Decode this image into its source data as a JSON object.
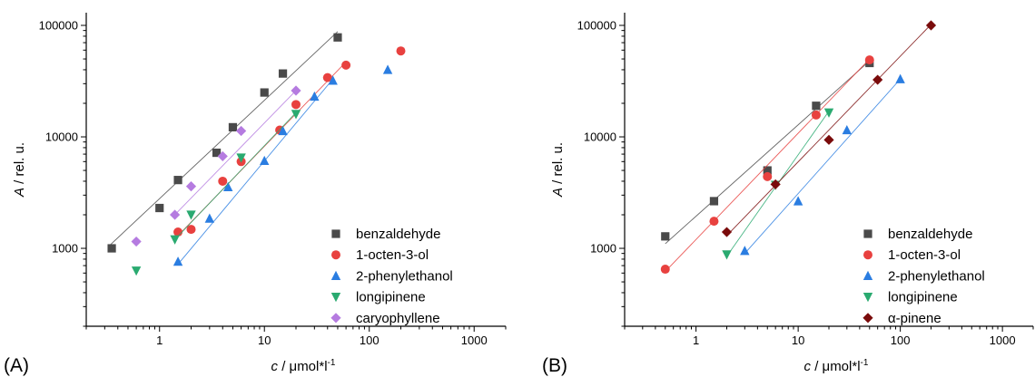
{
  "panels": [
    {
      "label": "(A)",
      "chart_data": {
        "type": "scatter",
        "xscale": "log",
        "yscale": "log",
        "xlim": [
          0.2,
          2000
        ],
        "ylim": [
          200,
          130000
        ],
        "xlabel_var": "c",
        "xlabel_unit": " / μmol*l",
        "xlabel_sup": "-1",
        "ylabel_var": "A",
        "ylabel_unit": " / rel. u.",
        "xticks": [
          1,
          10,
          100,
          1000
        ],
        "xtick_labels": [
          "1",
          "10",
          "100",
          "1000"
        ],
        "yticks": [
          1000,
          10000,
          100000
        ],
        "ytick_labels": [
          "1000",
          "10000",
          "100000"
        ],
        "legend_position": "bottom-right",
        "series": [
          {
            "name": "benzaldehyde",
            "marker": "square",
            "color": "#4a4a4a",
            "x": [
              0.35,
              1,
              1.5,
              3.5,
              5,
              10,
              15,
              50
            ],
            "y": [
              1000,
              2300,
              4100,
              7200,
              12200,
              25000,
              37000,
              78000
            ],
            "fit": [
              [
                0.33,
                1050
              ],
              [
                50,
                88000
              ]
            ]
          },
          {
            "name": "1-octen-3-ol",
            "marker": "circle",
            "color": "#e8413f",
            "x": [
              1.5,
              2,
              4,
              6,
              14,
              20,
              40,
              60,
              200
            ],
            "y": [
              1400,
              1480,
              4000,
              6000,
              11500,
              19500,
              34000,
              44000,
              59000
            ],
            "fit": [
              [
                1.5,
                1300
              ],
              [
                60,
                47000
              ]
            ]
          },
          {
            "name": "2-phenylethanol",
            "marker": "triangle-up",
            "color": "#2a7de1",
            "x": [
              1.5,
              3,
              4.5,
              10,
              15,
              30,
              45,
              150
            ],
            "y": [
              760,
              1850,
              3550,
              6100,
              11300,
              23000,
              32000,
              40000
            ],
            "fit": [
              [
                1.5,
                720
              ],
              [
                45,
                33000
              ]
            ]
          },
          {
            "name": "longipinene",
            "marker": "triangle-down",
            "color": "#2aaa70",
            "x": [
              0.6,
              1.4,
              2,
              6,
              20
            ],
            "y": [
              630,
              1200,
              2000,
              6500,
              16000
            ],
            "fit": [
              [
                1.4,
                1200
              ],
              [
                20,
                16500
              ]
            ]
          },
          {
            "name": "caryophyllene",
            "marker": "diamond",
            "color": "#b57be0",
            "x": [
              0.6,
              1.4,
              2,
              4,
              6,
              20
            ],
            "y": [
              1150,
              2000,
              3600,
              6700,
              11300,
              26000
            ],
            "fit": [
              [
                1.4,
                2000
              ],
              [
                20,
                26000
              ]
            ]
          }
        ]
      }
    },
    {
      "label": "(B)",
      "chart_data": {
        "type": "scatter",
        "xscale": "log",
        "yscale": "log",
        "xlim": [
          0.2,
          2000
        ],
        "ylim": [
          200,
          130000
        ],
        "xlabel_var": "c",
        "xlabel_unit": " / μmol*l",
        "xlabel_sup": "-1",
        "ylabel_var": "A",
        "ylabel_unit": " / rel. u.",
        "xticks": [
          1,
          10,
          100,
          1000
        ],
        "xtick_labels": [
          "1",
          "10",
          "100",
          "1000"
        ],
        "yticks": [
          1000,
          10000,
          100000
        ],
        "ytick_labels": [
          "1000",
          "10000",
          "100000"
        ],
        "legend_position": "bottom-right",
        "series": [
          {
            "name": "benzaldehyde",
            "marker": "square",
            "color": "#4a4a4a",
            "x": [
              0.5,
              1.5,
              5,
              15,
              50
            ],
            "y": [
              1280,
              2650,
              5000,
              19000,
              46000
            ],
            "fit": [
              [
                0.5,
                1100
              ],
              [
                50,
                48000
              ]
            ]
          },
          {
            "name": "1-octen-3-ol",
            "marker": "circle",
            "color": "#e8413f",
            "x": [
              0.5,
              1.5,
              5,
              15,
              50
            ],
            "y": [
              650,
              1750,
              4400,
              15700,
              49000
            ],
            "fit": [
              [
                0.5,
                620
              ],
              [
                50,
                50000
              ]
            ]
          },
          {
            "name": "2-phenylethanol",
            "marker": "triangle-up",
            "color": "#2a7de1",
            "x": [
              3,
              10,
              30,
              100
            ],
            "y": [
              950,
              2650,
              11500,
              33000
            ],
            "fit": [
              [
                3,
                900
              ],
              [
                100,
                33000
              ]
            ]
          },
          {
            "name": "longipinene",
            "marker": "triangle-down",
            "color": "#2aaa70",
            "x": [
              2,
              6,
              20
            ],
            "y": [
              880,
              3700,
              16500
            ],
            "fit": [
              [
                2,
                850
              ],
              [
                20,
                17000
              ]
            ]
          },
          {
            "name": "α-pinene",
            "marker": "diamond",
            "color": "#7a0b0b",
            "x": [
              2,
              6,
              20,
              60,
              200
            ],
            "y": [
              1400,
              3750,
              9400,
              32500,
              100000
            ],
            "fit": [
              [
                2,
                1300
              ],
              [
                200,
                102000
              ]
            ]
          }
        ]
      }
    }
  ]
}
